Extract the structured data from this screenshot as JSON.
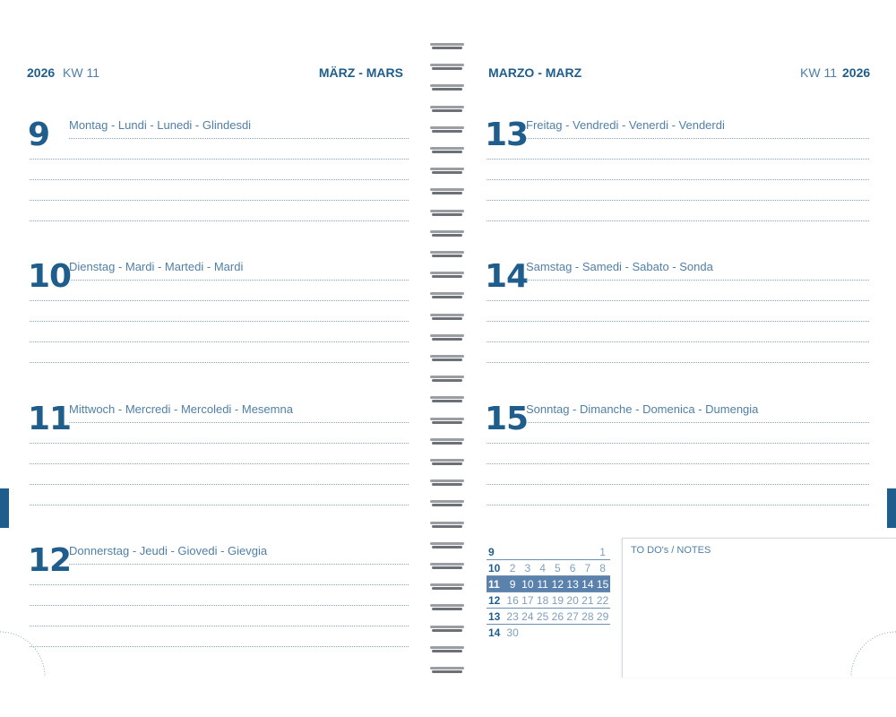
{
  "left": {
    "year": "2026",
    "week": "KW 11",
    "month": "MÄRZ - MARS",
    "days": [
      {
        "num": "9",
        "name": "Montag - Lundi - Lunedi - Glindesdi"
      },
      {
        "num": "10",
        "name": "Dienstag - Mardi - Martedi - Mardi"
      },
      {
        "num": "11",
        "name": "Mittwoch - Mercredi - Mercoledi - Mesemna"
      },
      {
        "num": "12",
        "name": "Donnerstag - Jeudi - Giovedi - Gievgia"
      }
    ]
  },
  "right": {
    "year": "2026",
    "week": "KW 11",
    "month": "MARZO - MARZ",
    "days": [
      {
        "num": "13",
        "name": "Freitag - Vendredi - Venerdi - Venderdi"
      },
      {
        "num": "14",
        "name": "Samstag - Samedi - Sabato - Sonda"
      },
      {
        "num": "15",
        "name": "Sonntag - Dimanche - Domenica - Dumengia"
      }
    ]
  },
  "mini_calendar": {
    "highlight_week": "11",
    "rows": [
      {
        "week": "9",
        "days": [
          "",
          "",
          "",
          "",
          "",
          "",
          "1"
        ]
      },
      {
        "week": "10",
        "days": [
          "2",
          "3",
          "4",
          "5",
          "6",
          "7",
          "8"
        ]
      },
      {
        "week": "11",
        "days": [
          "9",
          "10",
          "11",
          "12",
          "13",
          "14",
          "15"
        ]
      },
      {
        "week": "12",
        "days": [
          "16",
          "17",
          "18",
          "19",
          "20",
          "21",
          "22"
        ]
      },
      {
        "week": "13",
        "days": [
          "23",
          "24",
          "25",
          "26",
          "27",
          "28",
          "29"
        ]
      },
      {
        "week": "14",
        "days": [
          "30",
          "",
          "",
          "",
          "",
          "",
          ""
        ]
      }
    ]
  },
  "notes": {
    "label": "TO DO's / NOTES"
  },
  "colors": {
    "accent": "#1f5e8c",
    "highlight": "#5b82ad"
  }
}
